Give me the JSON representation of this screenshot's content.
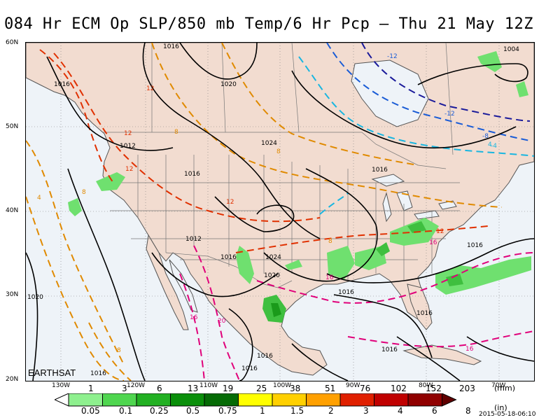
{
  "title": "084 Hr ECM Op SLP/850 mb Temp/6 Hr Pcp – Thu 21 May 12Z",
  "credit": "EARTHSAT",
  "timestamp": "2015-05-18-06:10",
  "lat_labels": [
    "60N",
    "50N",
    "40N",
    "30N",
    "20N"
  ],
  "lon_labels": [
    "130W",
    "120W",
    "110W",
    "100W",
    "90W",
    "80W",
    "70W"
  ],
  "scale": {
    "mm_labels": [
      "1",
      "3",
      "6",
      "13",
      "19",
      "25",
      "38",
      "51",
      "76",
      "102",
      "152",
      "203"
    ],
    "in_labels": [
      "0.05",
      "0.1",
      "0.25",
      "0.5",
      "0.75",
      "1",
      "1.5",
      "2",
      "3",
      "4",
      "6",
      "8"
    ],
    "mm_unit": "(mm)",
    "in_unit": "(in)",
    "colors": [
      "#ffffff",
      "#8ef08e",
      "#4fd64f",
      "#22b022",
      "#0a8f0a",
      "#056b05",
      "#ffff00",
      "#ffd000",
      "#ffa000",
      "#e02000",
      "#c00000",
      "#900000",
      "#600000"
    ]
  },
  "isobar_labels": [
    "1016",
    "1020",
    "1012",
    "1024",
    "1016",
    "1016",
    "1012",
    "1016",
    "1024",
    "1020",
    "1016",
    "1016",
    "1016",
    "1016",
    "1016",
    "1016",
    "1004",
    "1020",
    "1016",
    "1016"
  ],
  "temp_labels": [
    "12",
    "8",
    "12",
    "12",
    "8",
    "4",
    "12",
    "8",
    "-12",
    "-12",
    "-8",
    "-4",
    "8",
    "12",
    "16",
    "16",
    "16",
    "20",
    "16",
    "8",
    "4"
  ],
  "colors": {
    "land": "#f2dcd0",
    "ocean": "#eef3f8",
    "isobar": "#000000",
    "temp_orange": "#e08a00",
    "temp_red": "#e03000",
    "temp_pink": "#e0007a",
    "temp_cyan": "#19b6e0",
    "temp_blue": "#1a5cd6",
    "temp_navy": "#1a1a9a",
    "precip": "#3fcf3f"
  }
}
